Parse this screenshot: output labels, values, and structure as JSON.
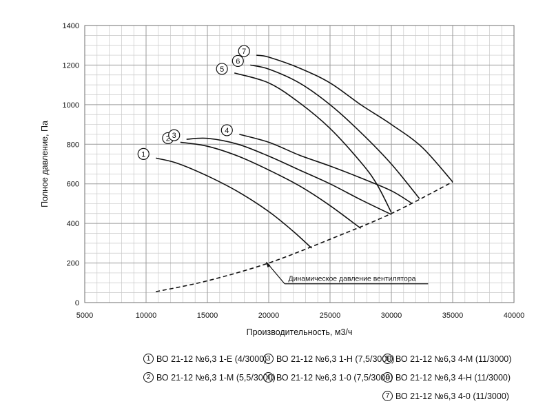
{
  "chart_data": {
    "type": "line",
    "title": "",
    "xlabel": "Производительность, м3/ч",
    "ylabel": "Полное давление, Па",
    "xlim": [
      5000,
      40000
    ],
    "ylim": [
      0,
      1400
    ],
    "x_ticks": [
      "5000",
      "10000",
      "15000",
      "20000",
      "25000",
      "30000",
      "35000",
      "40000"
    ],
    "y_ticks": [
      "0",
      "200",
      "400",
      "600",
      "800",
      "1000",
      "1200",
      "1400"
    ],
    "grid": true,
    "series": [
      {
        "name": "1",
        "points": [
          [
            10800,
            730
          ],
          [
            12500,
            705
          ],
          [
            15000,
            640
          ],
          [
            17500,
            560
          ],
          [
            20000,
            460
          ],
          [
            22000,
            360
          ],
          [
            23500,
            275
          ]
        ]
      },
      {
        "name": "2",
        "points": [
          [
            12800,
            810
          ],
          [
            15000,
            790
          ],
          [
            17500,
            740
          ],
          [
            20000,
            670
          ],
          [
            22500,
            590
          ],
          [
            25000,
            490
          ],
          [
            27500,
            375
          ]
        ]
      },
      {
        "name": "3",
        "points": [
          [
            13300,
            825
          ],
          [
            15000,
            830
          ],
          [
            17500,
            800
          ],
          [
            20000,
            740
          ],
          [
            22500,
            670
          ],
          [
            25000,
            600
          ],
          [
            27500,
            520
          ],
          [
            30000,
            445
          ]
        ]
      },
      {
        "name": "4",
        "points": [
          [
            17600,
            850
          ],
          [
            20000,
            810
          ],
          [
            22500,
            745
          ],
          [
            25000,
            690
          ],
          [
            27500,
            630
          ],
          [
            30000,
            565
          ],
          [
            31700,
            500
          ]
        ]
      },
      {
        "name": "5",
        "points": [
          [
            17200,
            1160
          ],
          [
            20000,
            1110
          ],
          [
            22500,
            1010
          ],
          [
            25000,
            880
          ],
          [
            27500,
            710
          ],
          [
            28800,
            600
          ],
          [
            30000,
            455
          ]
        ]
      },
      {
        "name": "6",
        "points": [
          [
            18500,
            1200
          ],
          [
            20000,
            1180
          ],
          [
            22500,
            1110
          ],
          [
            25000,
            1000
          ],
          [
            27500,
            860
          ],
          [
            30000,
            700
          ],
          [
            32300,
            525
          ]
        ]
      },
      {
        "name": "7",
        "points": [
          [
            19000,
            1250
          ],
          [
            20000,
            1240
          ],
          [
            22500,
            1185
          ],
          [
            25000,
            1110
          ],
          [
            27500,
            1000
          ],
          [
            30000,
            900
          ],
          [
            32500,
            785
          ],
          [
            35000,
            610
          ]
        ]
      }
    ],
    "dynamic_pressure": {
      "label": "Динамическое давление вентилятора",
      "points": [
        [
          10800,
          55
        ],
        [
          15000,
          110
        ],
        [
          20000,
          200
        ],
        [
          25000,
          320
        ],
        [
          30000,
          450
        ],
        [
          35000,
          610
        ]
      ]
    }
  },
  "legend": [
    {
      "num": "1",
      "text": "ВО 21-12 №6,3 1-Е (4/3000)"
    },
    {
      "num": "2",
      "text": "ВО 21-12 №6,3 1-М (5,5/3000)"
    },
    {
      "num": "3",
      "text": "ВО 21-12 №6,3 1-Н (7,5/3000)"
    },
    {
      "num": "4",
      "text": "ВО 21-12 №6,3 1-0 (7,5/3000)"
    },
    {
      "num": "5",
      "text": "ВО 21-12 №6,3 4-М (11/3000)"
    },
    {
      "num": "6",
      "text": "ВО 21-12 №6,3 4-Н (11/3000)"
    },
    {
      "num": "7",
      "text": "ВО 21-12 №6,3 4-0 (11/3000)"
    }
  ]
}
